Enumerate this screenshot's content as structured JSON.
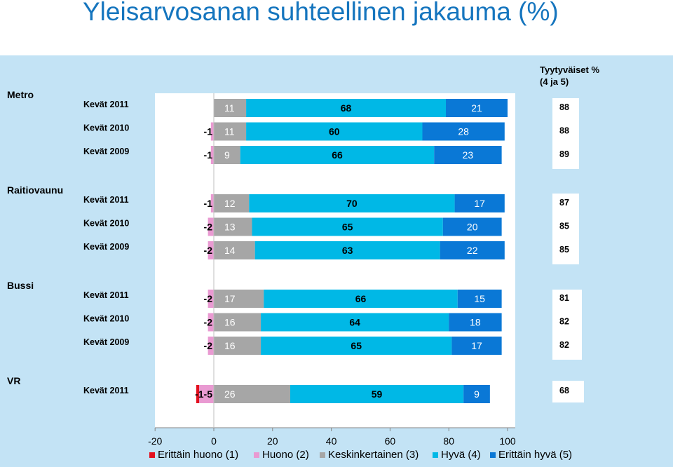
{
  "page": {
    "title": "Yleisarvosanan suhteellinen jakauma (%)"
  },
  "chart_data": {
    "type": "bar",
    "orientation": "horizontal",
    "stacked": true,
    "title": "Yleisarvosanan suhteellinen jakauma (%)",
    "xlim": [
      -20,
      100
    ],
    "x_ticks": [
      "-20",
      "0",
      "20",
      "40",
      "60",
      "80",
      "100"
    ],
    "legend_position": "bottom",
    "side_header_lines": [
      "Tyytyväiset %",
      "(4 ja 5)"
    ],
    "series": [
      {
        "name": "Erittäin huono (1)",
        "color": "#e3101e"
      },
      {
        "name": "Huono (2)",
        "color": "#e99ad2"
      },
      {
        "name": "Keskinkertainen (3)",
        "color": "#a6a6a6"
      },
      {
        "name": "Hyvä (4)",
        "color": "#00b8e6"
      },
      {
        "name": "Erittäin hyvä (5)",
        "color": "#0a78d6"
      }
    ],
    "groups": [
      {
        "name": "Metro",
        "rows": [
          {
            "label": "Kevät 2011",
            "very_poor": 0,
            "poor": 0,
            "neg_label": "",
            "mid": 11,
            "good": 68,
            "very_good": 21,
            "satisfied": 88
          },
          {
            "label": "Kevät 2010",
            "very_poor": 0,
            "poor": -1,
            "neg_label": "-1",
            "mid": 11,
            "good": 60,
            "very_good": 28,
            "satisfied": 88
          },
          {
            "label": "Kevät 2009",
            "very_poor": 0,
            "poor": -1,
            "neg_label": "-1",
            "mid": 9,
            "good": 66,
            "very_good": 23,
            "satisfied": 89
          }
        ]
      },
      {
        "name": "Raitiovaunu",
        "rows": [
          {
            "label": "Kevät 2011",
            "very_poor": 0,
            "poor": -1,
            "neg_label": "-1",
            "mid": 12,
            "good": 70,
            "very_good": 17,
            "satisfied": 87
          },
          {
            "label": "Kevät 2010",
            "very_poor": 0,
            "poor": -2,
            "neg_label": "-2",
            "mid": 13,
            "good": 65,
            "very_good": 20,
            "satisfied": 85
          },
          {
            "label": "Kevät 2009",
            "very_poor": 0,
            "poor": -2,
            "neg_label": "-2",
            "mid": 14,
            "good": 63,
            "very_good": 22,
            "satisfied": 85
          }
        ]
      },
      {
        "name": "Bussi",
        "rows": [
          {
            "label": "Kevät 2011",
            "very_poor": 0,
            "poor": -2,
            "neg_label": "-2",
            "mid": 17,
            "good": 66,
            "very_good": 15,
            "satisfied": 81
          },
          {
            "label": "Kevät 2010",
            "very_poor": 0,
            "poor": -2,
            "neg_label": "-2",
            "mid": 16,
            "good": 64,
            "very_good": 18,
            "satisfied": 82
          },
          {
            "label": "Kevät 2009",
            "very_poor": 0,
            "poor": -2,
            "neg_label": "-2",
            "mid": 16,
            "good": 65,
            "very_good": 17,
            "satisfied": 82
          }
        ]
      },
      {
        "name": "VR",
        "rows": [
          {
            "label": "Kevät 2011",
            "very_poor": -1,
            "poor": -5,
            "neg_label": "-1-5",
            "mid": 26,
            "good": 59,
            "very_good": 9,
            "satisfied": 68
          }
        ]
      }
    ]
  }
}
